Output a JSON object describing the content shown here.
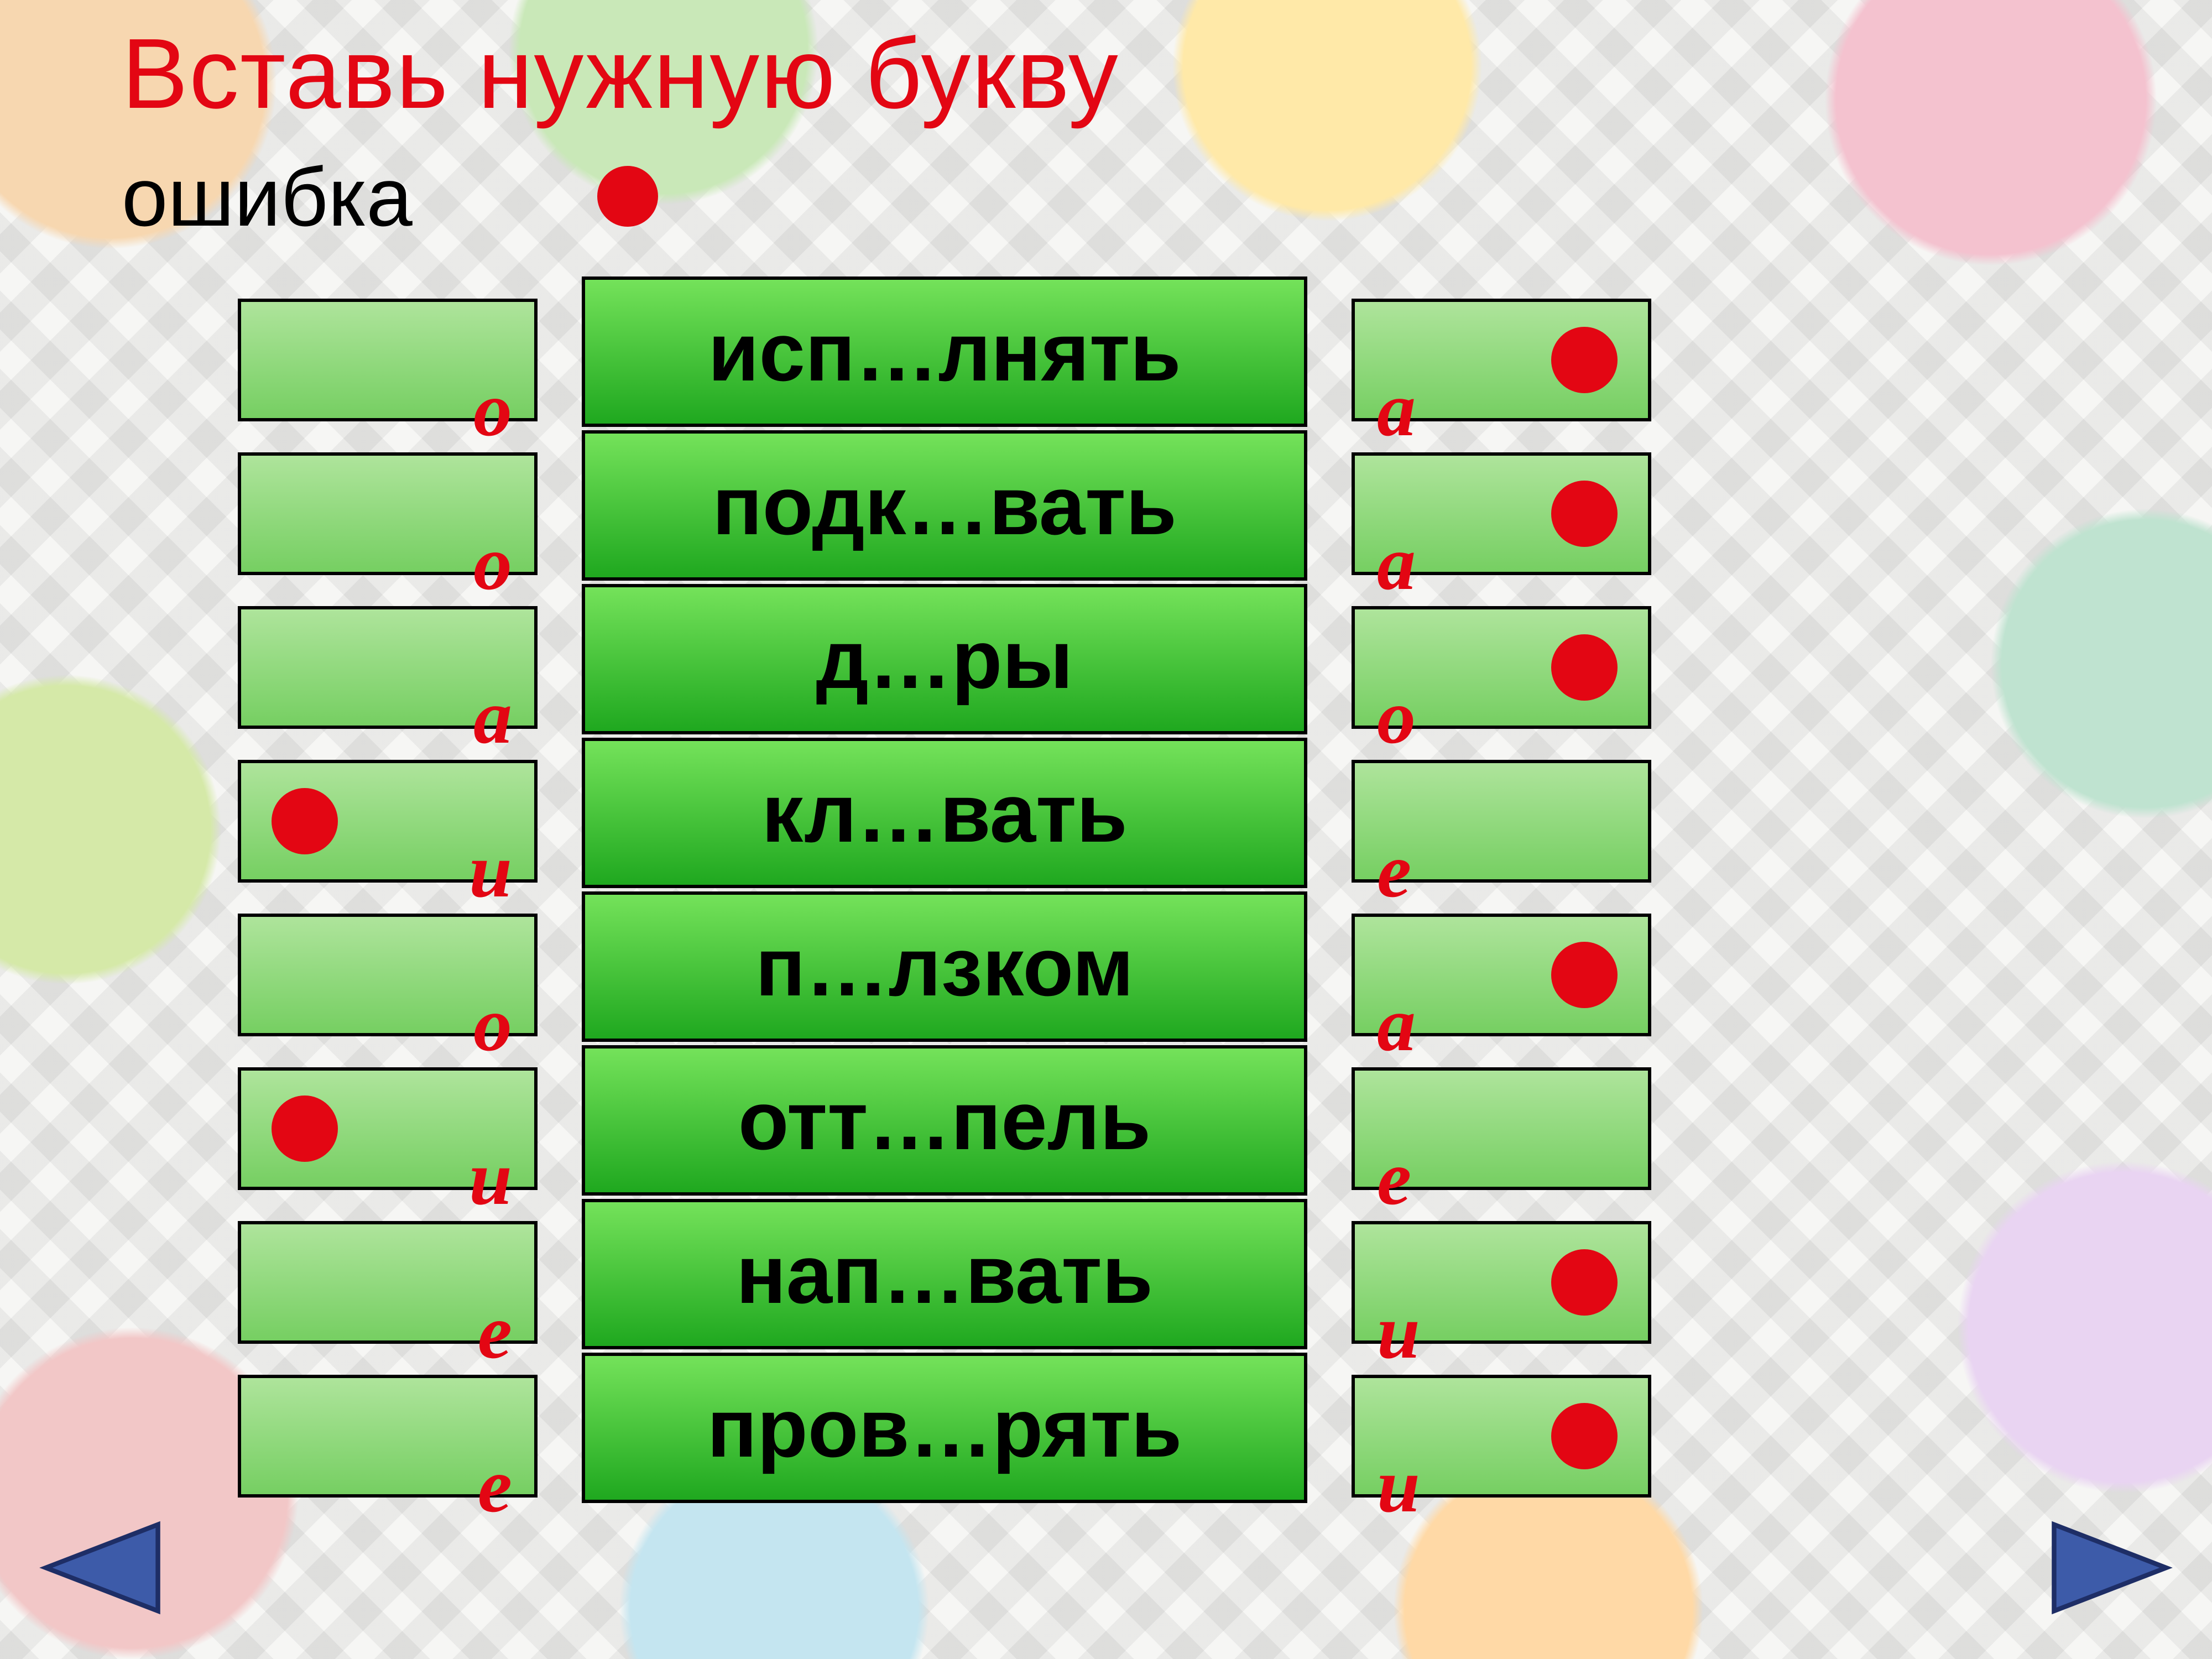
{
  "title": {
    "text": "Вставь нужную букву",
    "color": "#e30613"
  },
  "legend": {
    "label": "ошибка",
    "dot_color": "#e30613"
  },
  "colors": {
    "word_cell_border": "#000000",
    "side_box_border": "#000000",
    "letter_color": "#e30613",
    "nav_fill": "#3d5ba9",
    "nav_stroke": "#1e2e66"
  },
  "rows": [
    {
      "word": "исп…лнять",
      "left_letter": "о",
      "left_dot": false,
      "right_letter": "а",
      "right_dot": true
    },
    {
      "word": "подк…вать",
      "left_letter": "о",
      "left_dot": false,
      "right_letter": "а",
      "right_dot": true
    },
    {
      "word": "д…ры",
      "left_letter": "а",
      "left_dot": false,
      "right_letter": "о",
      "right_dot": true
    },
    {
      "word": "кл…вать",
      "left_letter": "и",
      "left_dot": true,
      "right_letter": "е",
      "right_dot": false
    },
    {
      "word": "п…лзком",
      "left_letter": "о",
      "left_dot": false,
      "right_letter": "а",
      "right_dot": true
    },
    {
      "word": "отт…пель",
      "left_letter": "и",
      "left_dot": true,
      "right_letter": "е",
      "right_dot": false
    },
    {
      "word": "нап…вать",
      "left_letter": "е",
      "left_dot": false,
      "right_letter": "и",
      "right_dot": true
    },
    {
      "word": "пров…рять",
      "left_letter": "е",
      "left_dot": false,
      "right_letter": "и",
      "right_dot": true
    }
  ]
}
